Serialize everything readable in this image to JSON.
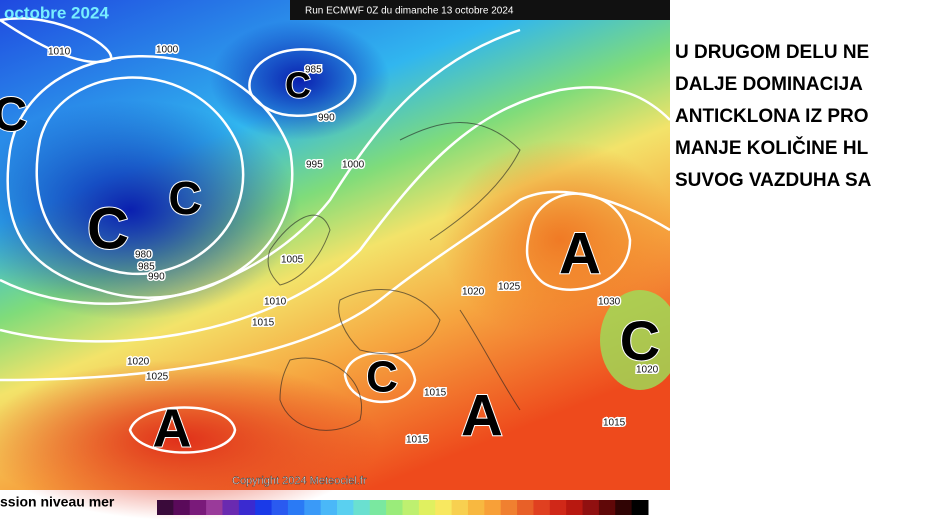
{
  "map": {
    "title": "octobre 2024",
    "run_label": "Run ECMWF 0Z du dimanche 13 octobre 2024",
    "copyright": "Copyright 2024 Meteociel.fr",
    "legend_label": "ssion niveau mer",
    "systems": [
      "C",
      "C",
      "C",
      "C",
      "A",
      "C",
      "C",
      "A",
      "A"
    ],
    "isobar_labels": [
      1010,
      1000,
      985,
      990,
      995,
      1000,
      980,
      985,
      990,
      1005,
      1010,
      1015,
      1020,
      1025,
      1020,
      1025,
      1030,
      1020,
      1015,
      1015,
      1015
    ]
  },
  "caption": {
    "lines": [
      "U DRUGOM DELU NE",
      "DALJE DOMINACIJA",
      "ANTICKLONA IZ PRO",
      "MANJE KOLIČINE HL",
      "SUVOG VAZDUHA SA"
    ]
  }
}
